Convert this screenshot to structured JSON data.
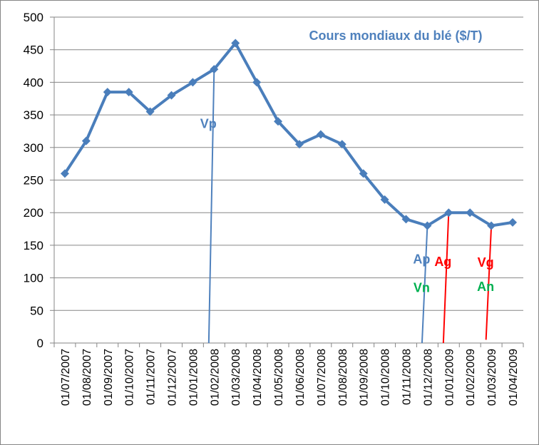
{
  "chart_data": {
    "type": "line",
    "title": "Cours mondiaux du blé ($/T)",
    "xlabel": "",
    "ylabel": "",
    "ylim": [
      0,
      500
    ],
    "yticks": [
      0,
      50,
      100,
      150,
      200,
      250,
      300,
      350,
      400,
      450,
      500
    ],
    "grid": "horizontal",
    "categories": [
      "01/07/2007",
      "01/08/2007",
      "01/09/2007",
      "01/10/2007",
      "01/11/2007",
      "01/12/2007",
      "01/01/2008",
      "01/02/2008",
      "01/03/2008",
      "01/04/2008",
      "01/05/2008",
      "01/06/2008",
      "01/07/2008",
      "01/08/2008",
      "01/09/2008",
      "01/10/2008",
      "01/11/2008",
      "01/12/2008",
      "01/01/2009",
      "01/02/2009",
      "01/03/2009",
      "01/04/2009"
    ],
    "series": [
      {
        "values": [
          260,
          310,
          385,
          385,
          355,
          380,
          400,
          420,
          460,
          400,
          340,
          305,
          320,
          305,
          260,
          220,
          190,
          180,
          200,
          200,
          180,
          185
        ]
      }
    ],
    "annotations": [
      {
        "label": "Vp",
        "color": "#4f81bd",
        "line_from": [
          "01/02/2008",
          0
        ],
        "line_to": [
          "01/02/2008",
          420
        ],
        "label_at": [
          "01/02/2008",
          330
        ]
      },
      {
        "label": "Ap",
        "color": "#4f81bd",
        "line_from": [
          "01/12/2008",
          0
        ],
        "line_to": [
          "01/12/2008",
          180
        ],
        "label_at": [
          "01/12/2008",
          122
        ]
      },
      {
        "label": "Vn",
        "color": "#00b050",
        "label_at": [
          "01/12/2008",
          78
        ]
      },
      {
        "label": "Ag",
        "color": "#ff0000",
        "line_from": [
          "01/01/2009",
          0
        ],
        "line_to": [
          "01/01/2009",
          200
        ],
        "label_at": [
          "01/01/2009",
          118
        ]
      },
      {
        "label": "Vg",
        "color": "#ff0000",
        "line_from": [
          "01/03/2009",
          5
        ],
        "line_to": [
          "01/03/2009",
          180
        ],
        "label_at": [
          "01/03/2009",
          117
        ]
      },
      {
        "label": "An",
        "color": "#00b050",
        "label_at": [
          "01/03/2009",
          80
        ]
      }
    ],
    "colors": {
      "series": "#4a7ebb",
      "title": "#4f81bd",
      "grid": "#868686"
    }
  }
}
